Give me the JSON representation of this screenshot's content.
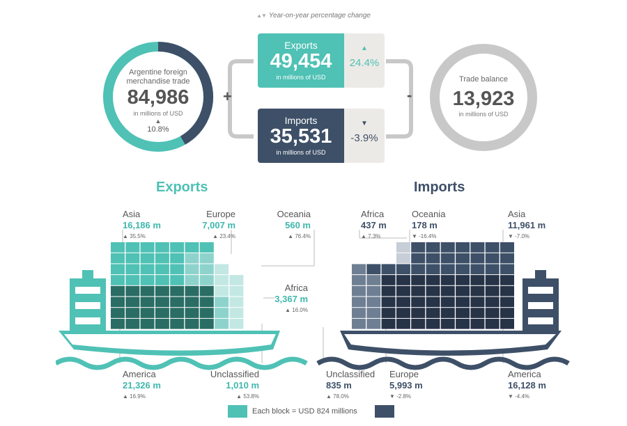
{
  "legend": {
    "text": "Year-on-year percentage change"
  },
  "colors": {
    "exports": "#4fc1b5",
    "exports_dark": "#2a6d64",
    "imports": "#3e5068",
    "imports_dark": "#273347",
    "neutral": "#c8c8c8"
  },
  "total": {
    "label_line1": "Argentine foreign",
    "label_line2": "merchandise trade",
    "value": "84,986",
    "unit": "in millions of USD",
    "change": "10.8%",
    "change_direction": "up",
    "exports_share": 0.5818
  },
  "exports_card": {
    "title": "Exports",
    "value": "49,454",
    "unit": "in millions of USD",
    "change": "24.4%",
    "change_direction": "up"
  },
  "imports_card": {
    "title": "Imports",
    "value": "35,531",
    "unit": "in millions of USD",
    "change": "-3.9%",
    "change_direction": "down"
  },
  "operators": {
    "plus": "+",
    "minus": "-"
  },
  "balance": {
    "label": "Trade balance",
    "value": "13,923",
    "unit": "in millions of USD"
  },
  "sections": {
    "exports_title": "Exports",
    "imports_title": "Imports"
  },
  "exports_regions": {
    "asia": {
      "name": "Asia",
      "value": "16,186 m",
      "change": "35.5%",
      "direction": "up"
    },
    "europe": {
      "name": "Europe",
      "value": "7,007 m",
      "change": "23.4%",
      "direction": "up"
    },
    "oceania": {
      "name": "Oceania",
      "value": "560 m",
      "change": "76.4%",
      "direction": "up"
    },
    "africa": {
      "name": "Africa",
      "value": "3,367 m",
      "change": "16.0%",
      "direction": "up"
    },
    "america": {
      "name": "America",
      "value": "21,326 m",
      "change": "16.9%",
      "direction": "up"
    },
    "unclassified": {
      "name": "Unclassified",
      "value": "1,010 m",
      "change": "53.8%",
      "direction": "up"
    }
  },
  "imports_regions": {
    "africa": {
      "name": "Africa",
      "value": "437 m",
      "change": "7.3%",
      "direction": "up"
    },
    "oceania": {
      "name": "Oceania",
      "value": "178 m",
      "change": "-16.4%",
      "direction": "down"
    },
    "asia": {
      "name": "Asia",
      "value": "11,961 m",
      "change": "-7.0%",
      "direction": "down"
    },
    "unclassified": {
      "name": "Unclassified",
      "value": "835 m",
      "change": "78.0%",
      "direction": "up"
    },
    "europe": {
      "name": "Europe",
      "value": "5,993 m",
      "change": "-2.8%",
      "direction": "down"
    },
    "america": {
      "name": "America",
      "value": "16,128 m",
      "change": "-4.4%",
      "direction": "down"
    }
  },
  "footer": {
    "text": "Each block = USD 824 millions"
  }
}
